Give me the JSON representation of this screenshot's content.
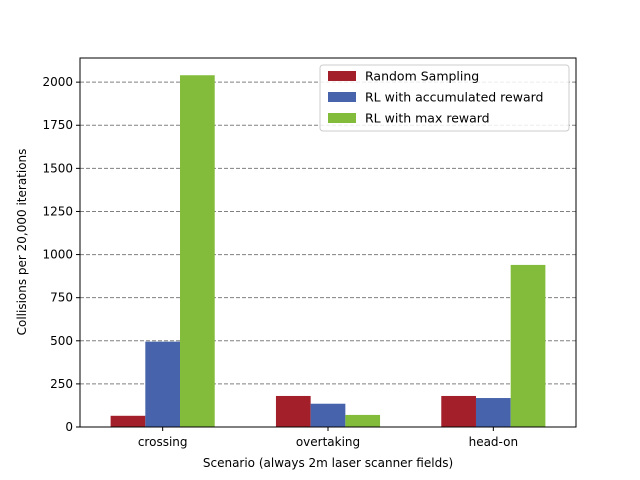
{
  "chart_data": {
    "type": "bar",
    "categories": [
      "crossing",
      "overtaking",
      "head-on"
    ],
    "series": [
      {
        "name": "Random Sampling",
        "color": "#A31F2A",
        "values": [
          65,
          180,
          180
        ]
      },
      {
        "name": "RL with accumulated reward",
        "color": "#4663AB",
        "values": [
          495,
          135,
          168
        ]
      },
      {
        "name": "RL with max reward",
        "color": "#83BC3B",
        "values": [
          2040,
          70,
          940
        ]
      }
    ],
    "title": "",
    "xlabel": "Scenario (always 2m laser scanner fields)",
    "ylabel": "Collisions per 20,000 iterations",
    "ylim": [
      0,
      2140
    ],
    "yticks": [
      0,
      250,
      500,
      750,
      1000,
      1250,
      1500,
      1750,
      2000
    ],
    "ytick_labels": [
      "0",
      "250",
      "500",
      "750",
      "1000",
      "1250",
      "1500",
      "1750",
      "2000"
    ],
    "grid": true,
    "legend_position": "top-right"
  }
}
